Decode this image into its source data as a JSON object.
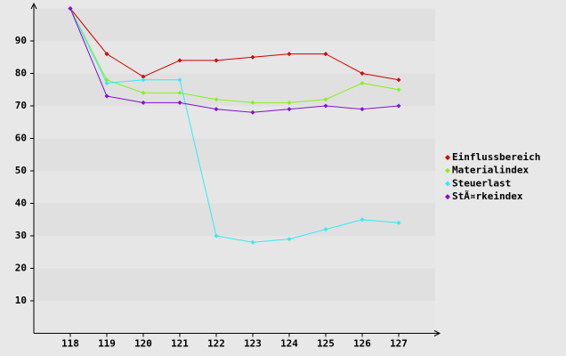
{
  "chart_data": {
    "type": "line",
    "x": [
      118,
      119,
      120,
      121,
      122,
      123,
      124,
      125,
      126,
      127
    ],
    "series": [
      {
        "name": "Einflussbereich",
        "color": "#d40000",
        "values": [
          100,
          86,
          79,
          84,
          84,
          85,
          86,
          86,
          80,
          78
        ]
      },
      {
        "name": "Materialindex",
        "color": "#88f020",
        "values": [
          100,
          78,
          74,
          74,
          72,
          71,
          71,
          72,
          77,
          75
        ]
      },
      {
        "name": "Steuerlast",
        "color": "#30ecf4",
        "values": [
          100,
          77,
          78,
          78,
          30,
          28,
          29,
          32,
          35,
          34
        ]
      },
      {
        "name": "StÃ¤rkeindex",
        "color": "#8010d0",
        "values": [
          100,
          73,
          71,
          71,
          69,
          68,
          69,
          70,
          69,
          70
        ]
      }
    ],
    "xlim": [
      117,
      128
    ],
    "xticks": [
      118,
      119,
      120,
      121,
      122,
      123,
      124,
      125,
      126,
      127
    ],
    "ylim": [
      0,
      100
    ],
    "yticks": [
      10,
      20,
      30,
      40,
      50,
      60,
      70,
      80,
      90
    ],
    "grid": true,
    "legend": "right"
  }
}
